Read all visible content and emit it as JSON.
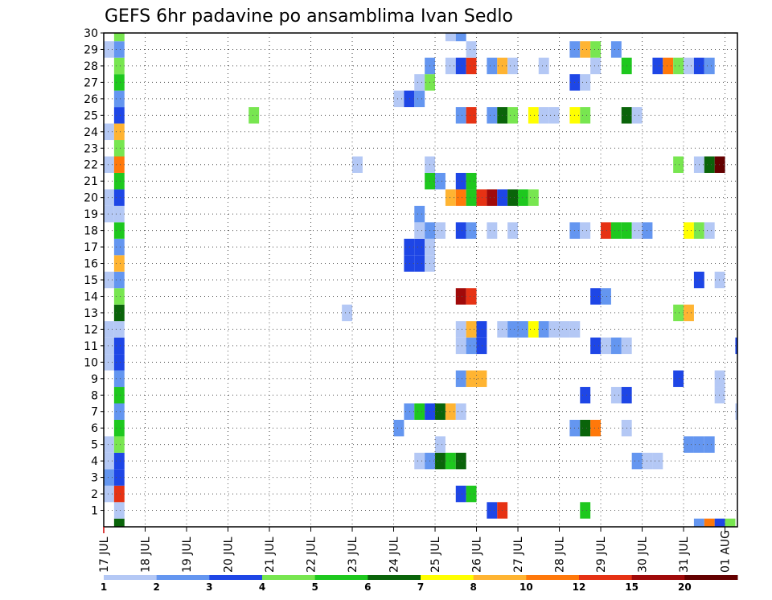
{
  "chart_data": {
    "type": "heatmap",
    "title": "GEFS 6hr padavine po ansamblima Ivan Sedlo",
    "x_tick_labels": [
      "17 JUL",
      "18 JUL",
      "19 JUL",
      "20 JUL",
      "21 JUL",
      "22 JUL",
      "23 JUL",
      "24 JUL",
      "25 JUL",
      "26 JUL",
      "27 JUL",
      "28 JUL",
      "29 JUL",
      "30 JUL",
      "31 JUL",
      "01 AUG"
    ],
    "y_tick_labels": [
      "1",
      "2",
      "3",
      "4",
      "5",
      "6",
      "7",
      "8",
      "9",
      "10",
      "11",
      "12",
      "13",
      "14",
      "15",
      "16",
      "17",
      "18",
      "19",
      "20",
      "21",
      "22",
      "23",
      "24",
      "25",
      "26",
      "27",
      "28",
      "29",
      "30"
    ],
    "x_range_days": [
      0,
      15.3
    ],
    "y_range_members": [
      0,
      30
    ],
    "grid": "dotted",
    "legend": {
      "position": "bottom",
      "levels": [
        "1",
        "2",
        "3",
        "4",
        "5",
        "6",
        "7",
        "8",
        "10",
        "12",
        "15",
        "20"
      ],
      "colors": [
        "#b4c8f5",
        "#6496f0",
        "#1e46e6",
        "#78e650",
        "#1ec81e",
        "#0a640a",
        "#ffff00",
        "#ffb432",
        "#ff780a",
        "#e63214",
        "#a00a0a",
        "#640000"
      ]
    },
    "palette": [
      "#b4c8f5",
      "#6496f0",
      "#1e46e6",
      "#78e650",
      "#1ec81e",
      "#0a640a",
      "#ffff00",
      "#ffb432",
      "#ff780a",
      "#e63214",
      "#a00a0a",
      "#640000"
    ],
    "cells": [
      {
        "m": 0,
        "t": 0.25,
        "c": 6
      },
      {
        "m": 0,
        "t": 14.25,
        "c": 2
      },
      {
        "m": 0,
        "t": 14.5,
        "c": 9
      },
      {
        "m": 0,
        "t": 14.75,
        "c": 3
      },
      {
        "m": 0,
        "t": 15,
        "c": 4
      },
      {
        "m": 1,
        "t": 0.25,
        "c": 1
      },
      {
        "m": 1,
        "t": 9.25,
        "c": 3
      },
      {
        "m": 1,
        "t": 9.5,
        "c": 10
      },
      {
        "m": 1,
        "t": 11.5,
        "c": 5
      },
      {
        "m": 2,
        "t": 0,
        "c": 1
      },
      {
        "m": 2,
        "t": 0.25,
        "c": 10
      },
      {
        "m": 2,
        "t": 8.5,
        "c": 3
      },
      {
        "m": 2,
        "t": 8.75,
        "c": 5
      },
      {
        "m": 3,
        "t": 0,
        "c": 2
      },
      {
        "m": 3,
        "t": 0.25,
        "c": 3
      },
      {
        "m": 4,
        "t": 0,
        "c": 1
      },
      {
        "m": 4,
        "t": 0.25,
        "c": 3
      },
      {
        "m": 4,
        "t": 7.5,
        "c": 1
      },
      {
        "m": 4,
        "t": 7.75,
        "c": 2
      },
      {
        "m": 4,
        "t": 8,
        "c": 6
      },
      {
        "m": 4,
        "t": 8.25,
        "c": 5
      },
      {
        "m": 4,
        "t": 8.5,
        "c": 6
      },
      {
        "m": 4,
        "t": 12.75,
        "c": 2
      },
      {
        "m": 4,
        "t": 13,
        "c": 1
      },
      {
        "m": 4,
        "t": 13.25,
        "c": 1
      },
      {
        "m": 5,
        "t": 0,
        "c": 1
      },
      {
        "m": 5,
        "t": 0.25,
        "c": 4
      },
      {
        "m": 5,
        "t": 8,
        "c": 1
      },
      {
        "m": 5,
        "t": 14,
        "c": 2
      },
      {
        "m": 5,
        "t": 14.25,
        "c": 2
      },
      {
        "m": 5,
        "t": 14.5,
        "c": 2
      },
      {
        "m": 6,
        "t": 0.25,
        "c": 5
      },
      {
        "m": 6,
        "t": 7,
        "c": 2
      },
      {
        "m": 6,
        "t": 11.25,
        "c": 2
      },
      {
        "m": 6,
        "t": 11.5,
        "c": 6
      },
      {
        "m": 6,
        "t": 11.75,
        "c": 9
      },
      {
        "m": 6,
        "t": 12.5,
        "c": 1
      },
      {
        "m": 7,
        "t": 0.25,
        "c": 2
      },
      {
        "m": 7,
        "t": 7.25,
        "c": 2
      },
      {
        "m": 7,
        "t": 7.5,
        "c": 5
      },
      {
        "m": 7,
        "t": 7.75,
        "c": 3
      },
      {
        "m": 7,
        "t": 8,
        "c": 6
      },
      {
        "m": 7,
        "t": 8.25,
        "c": 8
      },
      {
        "m": 7,
        "t": 8.5,
        "c": 1
      },
      {
        "m": 7,
        "t": 15.25,
        "c": 1
      },
      {
        "m": 8,
        "t": 0.25,
        "c": 5
      },
      {
        "m": 8,
        "t": 11.5,
        "c": 3
      },
      {
        "m": 8,
        "t": 12.25,
        "c": 1
      },
      {
        "m": 8,
        "t": 12.5,
        "c": 3
      },
      {
        "m": 8,
        "t": 14.75,
        "c": 1
      },
      {
        "m": 9,
        "t": 0.25,
        "c": 2
      },
      {
        "m": 9,
        "t": 8.5,
        "c": 2
      },
      {
        "m": 9,
        "t": 8.75,
        "c": 8
      },
      {
        "m": 9,
        "t": 9,
        "c": 8
      },
      {
        "m": 9,
        "t": 13.75,
        "c": 3
      },
      {
        "m": 9,
        "t": 14.75,
        "c": 1
      },
      {
        "m": 10,
        "t": 0,
        "c": 1
      },
      {
        "m": 10,
        "t": 0.25,
        "c": 3
      },
      {
        "m": 11,
        "t": 0,
        "c": 1
      },
      {
        "m": 11,
        "t": 0.25,
        "c": 3
      },
      {
        "m": 11,
        "t": 8.5,
        "c": 1
      },
      {
        "m": 11,
        "t": 8.75,
        "c": 2
      },
      {
        "m": 11,
        "t": 9,
        "c": 3
      },
      {
        "m": 11,
        "t": 11.75,
        "c": 3
      },
      {
        "m": 11,
        "t": 12,
        "c": 1
      },
      {
        "m": 11,
        "t": 12.25,
        "c": 2
      },
      {
        "m": 11,
        "t": 12.5,
        "c": 1
      },
      {
        "m": 11,
        "t": 15.25,
        "c": 3
      },
      {
        "m": 12,
        "t": 0,
        "c": 1
      },
      {
        "m": 12,
        "t": 0.25,
        "c": 1
      },
      {
        "m": 12,
        "t": 8.5,
        "c": 1
      },
      {
        "m": 12,
        "t": 8.75,
        "c": 8
      },
      {
        "m": 12,
        "t": 9,
        "c": 3
      },
      {
        "m": 12,
        "t": 9.5,
        "c": 1
      },
      {
        "m": 12,
        "t": 9.75,
        "c": 2
      },
      {
        "m": 12,
        "t": 10,
        "c": 2
      },
      {
        "m": 12,
        "t": 10.25,
        "c": 7
      },
      {
        "m": 12,
        "t": 10.5,
        "c": 2
      },
      {
        "m": 12,
        "t": 10.75,
        "c": 1
      },
      {
        "m": 12,
        "t": 11,
        "c": 1
      },
      {
        "m": 12,
        "t": 11.25,
        "c": 1
      },
      {
        "m": 13,
        "t": 0.25,
        "c": 6
      },
      {
        "m": 13,
        "t": 5.75,
        "c": 1
      },
      {
        "m": 13,
        "t": 13.75,
        "c": 4
      },
      {
        "m": 13,
        "t": 14,
        "c": 8
      },
      {
        "m": 14,
        "t": 0.25,
        "c": 4
      },
      {
        "m": 14,
        "t": 8.5,
        "c": 11
      },
      {
        "m": 14,
        "t": 8.75,
        "c": 10
      },
      {
        "m": 14,
        "t": 11.75,
        "c": 3
      },
      {
        "m": 14,
        "t": 12,
        "c": 2
      },
      {
        "m": 15,
        "t": 0,
        "c": 1
      },
      {
        "m": 15,
        "t": 0.25,
        "c": 2
      },
      {
        "m": 15,
        "t": 14.25,
        "c": 3
      },
      {
        "m": 15,
        "t": 14.75,
        "c": 1
      },
      {
        "m": 16,
        "t": 0.25,
        "c": 8
      },
      {
        "m": 16,
        "t": 7.25,
        "c": 3
      },
      {
        "m": 16,
        "t": 7.5,
        "c": 3
      },
      {
        "m": 16,
        "t": 7.75,
        "c": 1
      },
      {
        "m": 17,
        "t": 0.25,
        "c": 2
      },
      {
        "m": 17,
        "t": 7.25,
        "c": 3
      },
      {
        "m": 17,
        "t": 7.5,
        "c": 3
      },
      {
        "m": 17,
        "t": 7.75,
        "c": 1
      },
      {
        "m": 18,
        "t": 0.25,
        "c": 5
      },
      {
        "m": 18,
        "t": 7.5,
        "c": 1
      },
      {
        "m": 18,
        "t": 7.75,
        "c": 2
      },
      {
        "m": 18,
        "t": 8,
        "c": 1
      },
      {
        "m": 18,
        "t": 8.5,
        "c": 3
      },
      {
        "m": 18,
        "t": 8.75,
        "c": 2
      },
      {
        "m": 18,
        "t": 9.25,
        "c": 1
      },
      {
        "m": 18,
        "t": 9.75,
        "c": 1
      },
      {
        "m": 18,
        "t": 11.25,
        "c": 2
      },
      {
        "m": 18,
        "t": 11.5,
        "c": 1
      },
      {
        "m": 18,
        "t": 12,
        "c": 10
      },
      {
        "m": 18,
        "t": 12.25,
        "c": 5
      },
      {
        "m": 18,
        "t": 12.5,
        "c": 5
      },
      {
        "m": 18,
        "t": 12.75,
        "c": 1
      },
      {
        "m": 18,
        "t": 13,
        "c": 2
      },
      {
        "m": 18,
        "t": 14,
        "c": 7
      },
      {
        "m": 18,
        "t": 14.25,
        "c": 4
      },
      {
        "m": 18,
        "t": 14.5,
        "c": 1
      },
      {
        "m": 19,
        "t": 0,
        "c": 1
      },
      {
        "m": 19,
        "t": 0.25,
        "c": 1
      },
      {
        "m": 19,
        "t": 7.5,
        "c": 2
      },
      {
        "m": 20,
        "t": 0,
        "c": 1
      },
      {
        "m": 20,
        "t": 0.25,
        "c": 3
      },
      {
        "m": 20,
        "t": 8.25,
        "c": 8
      },
      {
        "m": 20,
        "t": 8.5,
        "c": 9
      },
      {
        "m": 20,
        "t": 8.75,
        "c": 5
      },
      {
        "m": 20,
        "t": 9,
        "c": 10
      },
      {
        "m": 20,
        "t": 9.25,
        "c": 11
      },
      {
        "m": 20,
        "t": 9.5,
        "c": 3
      },
      {
        "m": 20,
        "t": 9.75,
        "c": 6
      },
      {
        "m": 20,
        "t": 10,
        "c": 5
      },
      {
        "m": 20,
        "t": 10.25,
        "c": 4
      },
      {
        "m": 21,
        "t": 0.25,
        "c": 5
      },
      {
        "m": 21,
        "t": 7.75,
        "c": 5
      },
      {
        "m": 21,
        "t": 8,
        "c": 2
      },
      {
        "m": 21,
        "t": 8.5,
        "c": 3
      },
      {
        "m": 21,
        "t": 8.75,
        "c": 5
      },
      {
        "m": 22,
        "t": 0,
        "c": 1
      },
      {
        "m": 22,
        "t": 0.25,
        "c": 9
      },
      {
        "m": 22,
        "t": 6,
        "c": 1
      },
      {
        "m": 22,
        "t": 7.75,
        "c": 1
      },
      {
        "m": 22,
        "t": 13.75,
        "c": 4
      },
      {
        "m": 22,
        "t": 14.25,
        "c": 1
      },
      {
        "m": 22,
        "t": 14.5,
        "c": 6
      },
      {
        "m": 22,
        "t": 14.75,
        "c": 12
      },
      {
        "m": 23,
        "t": 0.25,
        "c": 4
      },
      {
        "m": 24,
        "t": 0,
        "c": 1
      },
      {
        "m": 24,
        "t": 0.25,
        "c": 8
      },
      {
        "m": 25,
        "t": 0.25,
        "c": 3
      },
      {
        "m": 25,
        "t": 3.5,
        "c": 4
      },
      {
        "m": 25,
        "t": 8.5,
        "c": 2
      },
      {
        "m": 25,
        "t": 8.75,
        "c": 10
      },
      {
        "m": 25,
        "t": 9.25,
        "c": 2
      },
      {
        "m": 25,
        "t": 9.5,
        "c": 6
      },
      {
        "m": 25,
        "t": 9.75,
        "c": 4
      },
      {
        "m": 25,
        "t": 10.25,
        "c": 7
      },
      {
        "m": 25,
        "t": 10.5,
        "c": 1
      },
      {
        "m": 25,
        "t": 10.75,
        "c": 1
      },
      {
        "m": 25,
        "t": 11.25,
        "c": 7
      },
      {
        "m": 25,
        "t": 11.5,
        "c": 4
      },
      {
        "m": 25,
        "t": 12.5,
        "c": 6
      },
      {
        "m": 25,
        "t": 12.75,
        "c": 1
      },
      {
        "m": 26,
        "t": 0.25,
        "c": 2
      },
      {
        "m": 26,
        "t": 7,
        "c": 1
      },
      {
        "m": 26,
        "t": 7.25,
        "c": 3
      },
      {
        "m": 26,
        "t": 7.5,
        "c": 2
      },
      {
        "m": 27,
        "t": 0.25,
        "c": 5
      },
      {
        "m": 27,
        "t": 7.5,
        "c": 1
      },
      {
        "m": 27,
        "t": 7.75,
        "c": 4
      },
      {
        "m": 27,
        "t": 11.25,
        "c": 3
      },
      {
        "m": 27,
        "t": 11.5,
        "c": 1
      },
      {
        "m": 28,
        "t": 0.25,
        "c": 4
      },
      {
        "m": 28,
        "t": 7.75,
        "c": 2
      },
      {
        "m": 28,
        "t": 8.25,
        "c": 1
      },
      {
        "m": 28,
        "t": 8.5,
        "c": 3
      },
      {
        "m": 28,
        "t": 8.75,
        "c": 10
      },
      {
        "m": 28,
        "t": 9.25,
        "c": 2
      },
      {
        "m": 28,
        "t": 9.5,
        "c": 8
      },
      {
        "m": 28,
        "t": 9.75,
        "c": 1
      },
      {
        "m": 28,
        "t": 10.5,
        "c": 1
      },
      {
        "m": 28,
        "t": 11.75,
        "c": 1
      },
      {
        "m": 28,
        "t": 12.5,
        "c": 5
      },
      {
        "m": 28,
        "t": 13.25,
        "c": 3
      },
      {
        "m": 28,
        "t": 13.5,
        "c": 9
      },
      {
        "m": 28,
        "t": 13.75,
        "c": 4
      },
      {
        "m": 28,
        "t": 14,
        "c": 1
      },
      {
        "m": 28,
        "t": 14.25,
        "c": 3
      },
      {
        "m": 28,
        "t": 14.5,
        "c": 2
      },
      {
        "m": 29,
        "t": 0,
        "c": 1
      },
      {
        "m": 29,
        "t": 0.25,
        "c": 2
      },
      {
        "m": 29,
        "t": 8.75,
        "c": 1
      },
      {
        "m": 29,
        "t": 11.25,
        "c": 2
      },
      {
        "m": 29,
        "t": 11.5,
        "c": 8
      },
      {
        "m": 29,
        "t": 11.75,
        "c": 4
      },
      {
        "m": 29,
        "t": 12.25,
        "c": 2
      },
      {
        "m": 30,
        "t": 0.25,
        "c": 4
      },
      {
        "m": 30,
        "t": 8.25,
        "c": 1
      },
      {
        "m": 30,
        "t": 8.5,
        "c": 2
      }
    ]
  }
}
